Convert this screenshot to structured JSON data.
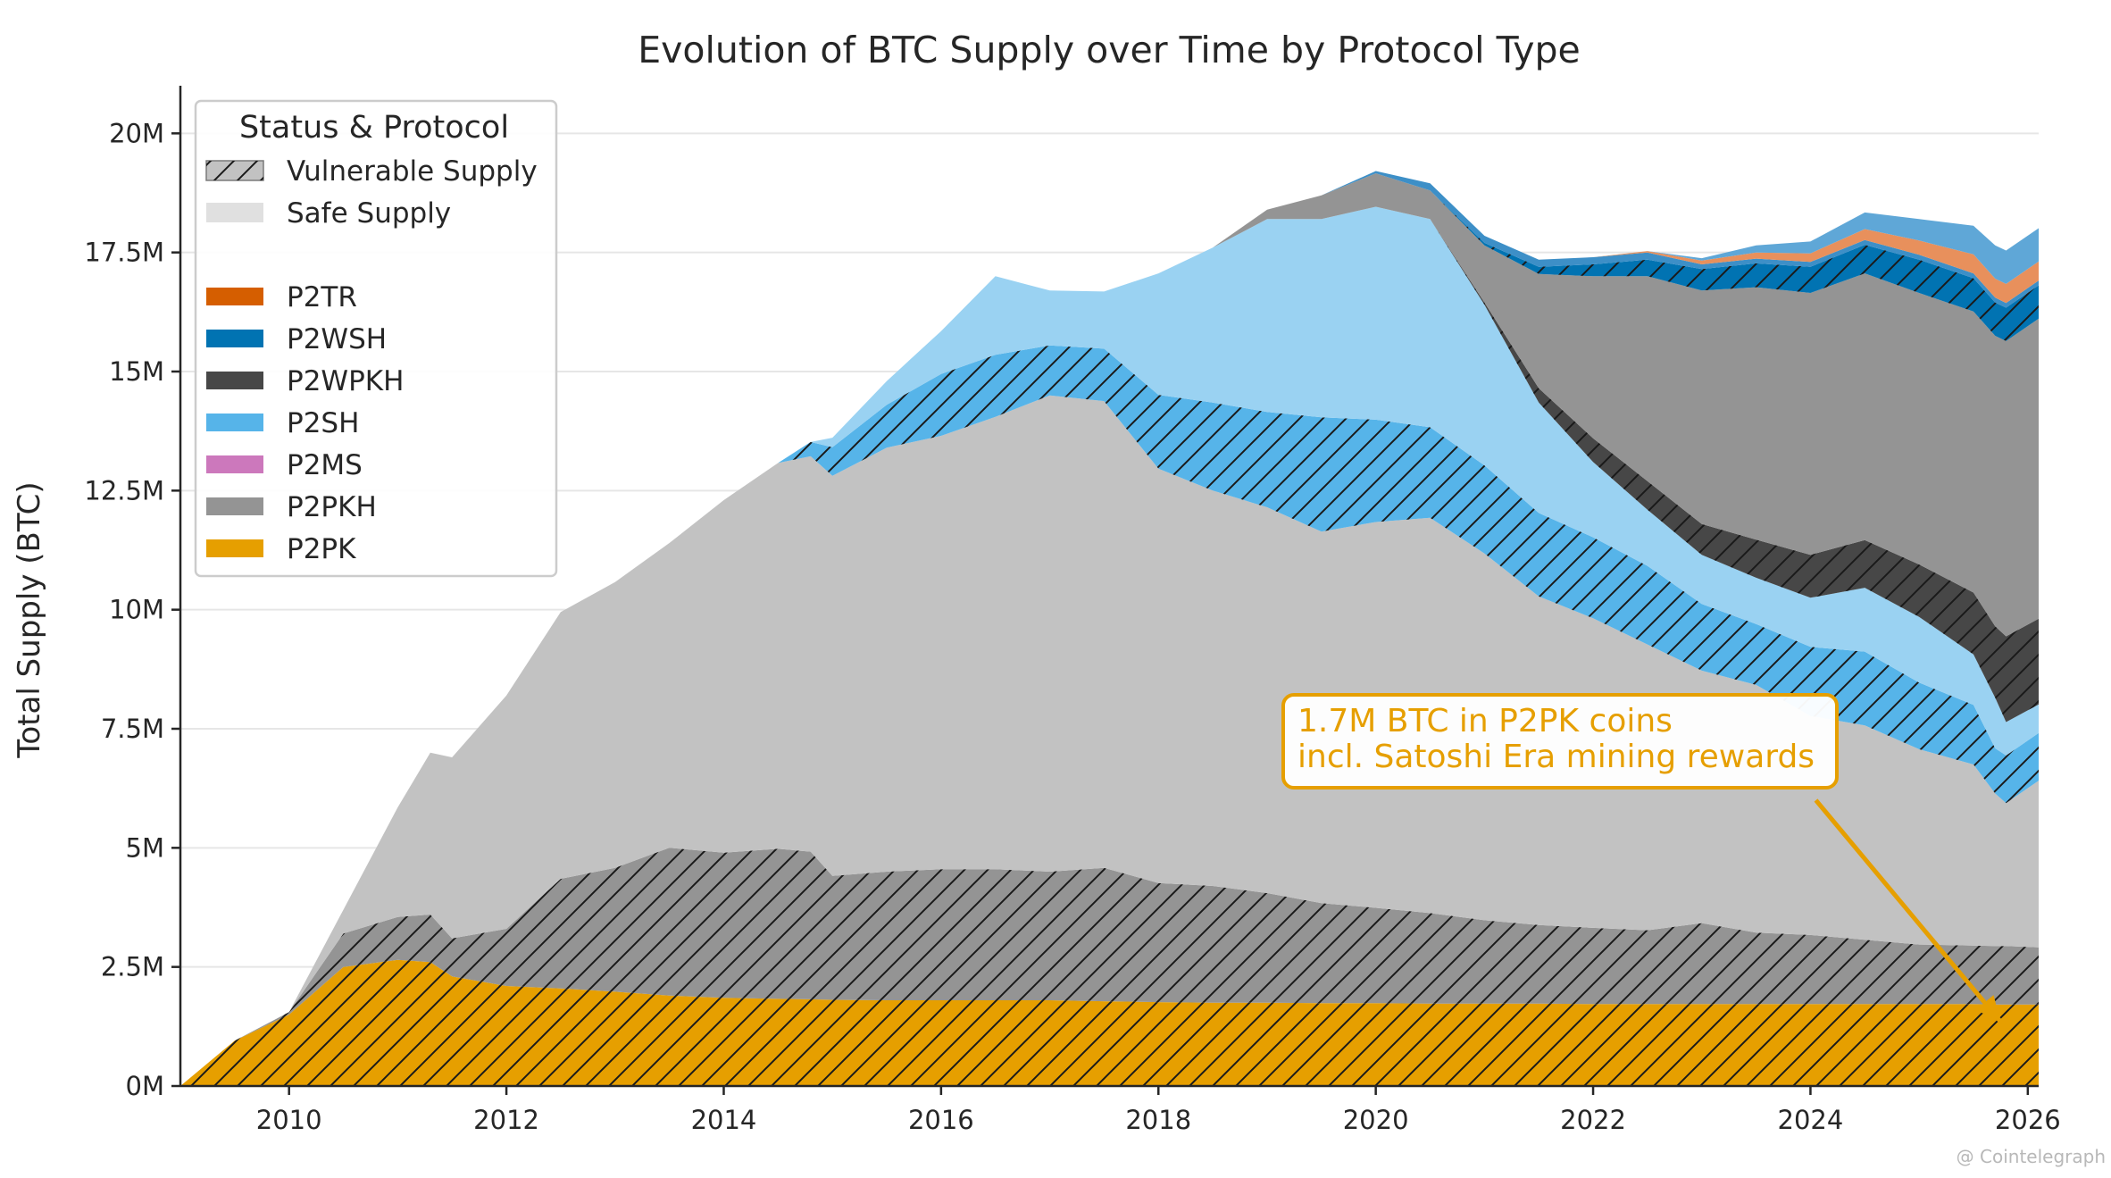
{
  "chart_data": {
    "type": "area",
    "title": "Evolution of BTC Supply over Time by Protocol Type",
    "xlabel": "",
    "ylabel": "Total Supply (BTC)",
    "xlim": [
      2009.0,
      2026.1
    ],
    "ylim": [
      0,
      21000000
    ],
    "x_ticks": [
      2010,
      2012,
      2014,
      2016,
      2018,
      2020,
      2022,
      2024,
      2026
    ],
    "x_tick_labels": [
      "2010",
      "2012",
      "2014",
      "2016",
      "2018",
      "2020",
      "2022",
      "2024",
      "2026"
    ],
    "y_ticks": [
      0,
      2500000,
      5000000,
      7500000,
      10000000,
      12500000,
      15000000,
      17500000,
      20000000
    ],
    "y_tick_labels": [
      "0M",
      "2.5M",
      "5M",
      "7.5M",
      "10M",
      "12.5M",
      "15M",
      "17.5M",
      "20M"
    ],
    "grid": "horizontal",
    "legend": {
      "placement": "top-left",
      "title": "Status & Protocol",
      "status_entries": [
        "Vulnerable Supply",
        "Safe Supply"
      ],
      "protocol_entries": [
        "P2TR",
        "P2WSH",
        "P2WPKH",
        "P2SH",
        "P2MS",
        "P2PKH",
        "P2PK"
      ]
    },
    "x": [
      2009.0,
      2009.5,
      2010.0,
      2010.5,
      2011.0,
      2011.3,
      2011.5,
      2012.0,
      2012.5,
      2013.0,
      2013.5,
      2014.0,
      2014.5,
      2014.8,
      2015.0,
      2015.5,
      2016.0,
      2016.5,
      2017.0,
      2017.5,
      2018.0,
      2018.5,
      2019.0,
      2019.5,
      2020.0,
      2020.5,
      2021.0,
      2021.5,
      2022.0,
      2022.5,
      2023.0,
      2023.5,
      2024.0,
      2024.5,
      2025.0,
      2025.5,
      2025.7,
      2025.8,
      2026.1
    ],
    "series": [
      {
        "name": "P2PK",
        "color": "#e69f00",
        "vulnerable": [
          0,
          950000,
          1500000,
          2500000,
          2650000,
          2600000,
          2300000,
          2100000,
          2050000,
          1980000,
          1900000,
          1850000,
          1830000,
          1820000,
          1810000,
          1800000,
          1800000,
          1800000,
          1800000,
          1780000,
          1760000,
          1750000,
          1750000,
          1740000,
          1740000,
          1730000,
          1730000,
          1730000,
          1720000,
          1720000,
          1720000,
          1720000,
          1720000,
          1720000,
          1720000,
          1720000,
          1710000,
          1710000,
          1710000
        ],
        "safe": [
          0,
          0,
          0,
          0,
          0,
          0,
          0,
          0,
          0,
          0,
          0,
          0,
          0,
          0,
          0,
          0,
          0,
          0,
          0,
          0,
          0,
          0,
          0,
          0,
          0,
          0,
          0,
          0,
          0,
          0,
          0,
          0,
          0,
          0,
          0,
          0,
          0,
          0,
          0
        ]
      },
      {
        "name": "P2PKH",
        "color": "#949494",
        "vulnerable": [
          0,
          0,
          50000,
          700000,
          900000,
          1000000,
          800000,
          1200000,
          2300000,
          2600000,
          3100000,
          3050000,
          3150000,
          3100000,
          2600000,
          2700000,
          2750000,
          2750000,
          2700000,
          2800000,
          2500000,
          2450000,
          2300000,
          2100000,
          2000000,
          1900000,
          1750000,
          1650000,
          1600000,
          1550000,
          1700000,
          1500000,
          1450000,
          1350000,
          1250000,
          1230000,
          1230000,
          1230000,
          1200000
        ],
        "safe": [
          0,
          0,
          0,
          500000,
          2300000,
          3400000,
          3800000,
          4900000,
          5600000,
          6000000,
          6400000,
          7400000,
          8100000,
          8300000,
          8400000,
          8900000,
          9100000,
          9500000,
          10000000,
          9800000,
          8700000,
          8300000,
          8100000,
          7800000,
          8100000,
          8300000,
          7700000,
          6900000,
          6500000,
          6000000,
          5300000,
          5200000,
          4600000,
          4500000,
          4100000,
          3800000,
          3200000,
          3000000,
          3500000
        ]
      },
      {
        "name": "P2MS",
        "color": "#cc78bc",
        "vulnerable": [
          0,
          0,
          0,
          0,
          0,
          0,
          0,
          0,
          0,
          0,
          0,
          0,
          0,
          0,
          0,
          0,
          0,
          0,
          0,
          0,
          0,
          0,
          0,
          0,
          0,
          0,
          0,
          0,
          0,
          0,
          0,
          0,
          0,
          0,
          0,
          0,
          0,
          0,
          0
        ],
        "safe": [
          0,
          0,
          0,
          0,
          0,
          0,
          0,
          0,
          0,
          0,
          0,
          0,
          0,
          0,
          0,
          0,
          0,
          0,
          0,
          0,
          0,
          0,
          0,
          0,
          0,
          0,
          0,
          0,
          0,
          0,
          0,
          0,
          0,
          0,
          0,
          0,
          0,
          0,
          0
        ]
      },
      {
        "name": "P2SH",
        "color": "#56b4e9",
        "vulnerable": [
          0,
          0,
          0,
          0,
          0,
          0,
          0,
          0,
          0,
          0,
          0,
          0,
          0,
          300000,
          600000,
          900000,
          1300000,
          1300000,
          1050000,
          1100000,
          1550000,
          1850000,
          2000000,
          2400000,
          2150000,
          1900000,
          1850000,
          1750000,
          1700000,
          1650000,
          1400000,
          1280000,
          1450000,
          1550000,
          1400000,
          1250000,
          950000,
          1000000,
          1000000
        ],
        "safe": [
          0,
          0,
          0,
          0,
          0,
          0,
          0,
          0,
          0,
          0,
          0,
          0,
          0,
          0,
          200000,
          500000,
          900000,
          1650000,
          1150000,
          1200000,
          2550000,
          3250000,
          4050000,
          4160000,
          4470000,
          4370000,
          3370000,
          2320000,
          1580000,
          1180000,
          1030000,
          970000,
          1030000,
          1340000,
          1380000,
          1060000,
          1060000,
          700000,
          600000
        ]
      },
      {
        "name": "P2WPKH",
        "color": "#474747",
        "vulnerable": [
          0,
          0,
          0,
          0,
          0,
          0,
          0,
          0,
          0,
          0,
          0,
          0,
          0,
          0,
          0,
          0,
          0,
          0,
          0,
          0,
          0,
          0,
          0,
          0,
          0,
          0,
          50000,
          300000,
          500000,
          600000,
          650000,
          800000,
          900000,
          1000000,
          1100000,
          1300000,
          1500000,
          1800000,
          1800000
        ],
        "safe": [
          0,
          0,
          0,
          0,
          0,
          0,
          0,
          0,
          0,
          0,
          0,
          0,
          0,
          0,
          0,
          0,
          0,
          0,
          0,
          0,
          0,
          0,
          200000,
          500000,
          700000,
          600000,
          1200000,
          2400000,
          3400000,
          4300000,
          4900000,
          5300000,
          5500000,
          5600000,
          5700000,
          5900000,
          6100000,
          6200000,
          6300000
        ]
      },
      {
        "name": "P2WSH",
        "color": "#0173b2",
        "vulnerable": [
          0,
          0,
          0,
          0,
          0,
          0,
          0,
          0,
          0,
          0,
          0,
          0,
          0,
          0,
          0,
          0,
          0,
          0,
          0,
          0,
          0,
          0,
          0,
          0,
          0,
          0,
          50000,
          150000,
          250000,
          350000,
          450000,
          500000,
          550000,
          600000,
          700000,
          700000,
          700000,
          700000,
          700000
        ],
        "safe": [
          0,
          0,
          0,
          0,
          0,
          0,
          0,
          0,
          0,
          0,
          0,
          0,
          0,
          0,
          0,
          0,
          0,
          0,
          0,
          0,
          0,
          0,
          0,
          0,
          50000,
          150000,
          150000,
          150000,
          150000,
          150000,
          100000,
          100000,
          100000,
          100000,
          100000,
          100000,
          100000,
          100000,
          100000
        ]
      },
      {
        "name": "P2TR",
        "color": "#d55e00",
        "vulnerable": [
          0,
          0,
          0,
          0,
          0,
          0,
          0,
          0,
          0,
          0,
          0,
          0,
          0,
          0,
          0,
          0,
          0,
          0,
          0,
          0,
          0,
          0,
          0,
          0,
          0,
          0,
          0,
          0,
          0,
          0,
          0,
          0,
          0,
          0,
          0,
          0,
          0,
          0,
          0
        ],
        "safe": [
          0,
          0,
          0,
          0,
          0,
          0,
          0,
          0,
          0,
          0,
          0,
          0,
          0,
          0,
          0,
          0,
          0,
          0,
          0,
          0,
          0,
          0,
          0,
          0,
          0,
          0,
          0,
          0,
          0,
          30000,
          80000,
          130000,
          180000,
          230000,
          300000,
          400000,
          400000,
          400000,
          400000
        ]
      }
    ],
    "top_band": {
      "name": "",
      "color": "#5fa7d7",
      "values": [
        0,
        0,
        0,
        0,
        0,
        0,
        0,
        0,
        0,
        0,
        0,
        0,
        0,
        0,
        0,
        0,
        0,
        0,
        0,
        0,
        0,
        0,
        0,
        0,
        0,
        0,
        0,
        0,
        0,
        0,
        50000,
        150000,
        250000,
        350000,
        450000,
        600000,
        700000,
        700000,
        700000
      ]
    },
    "annotation": {
      "lines": [
        "1.7M BTC in P2PK coins",
        "incl. Satoshi Era mining rewards"
      ],
      "color": "#e69f00",
      "arrow_to": [
        2025.75,
        1350000
      ],
      "arrow_from": [
        2024.05,
        6000000
      ],
      "box_anchor": [
        2019.3,
        7500000
      ]
    },
    "credit": "@ Cointelegraph"
  }
}
